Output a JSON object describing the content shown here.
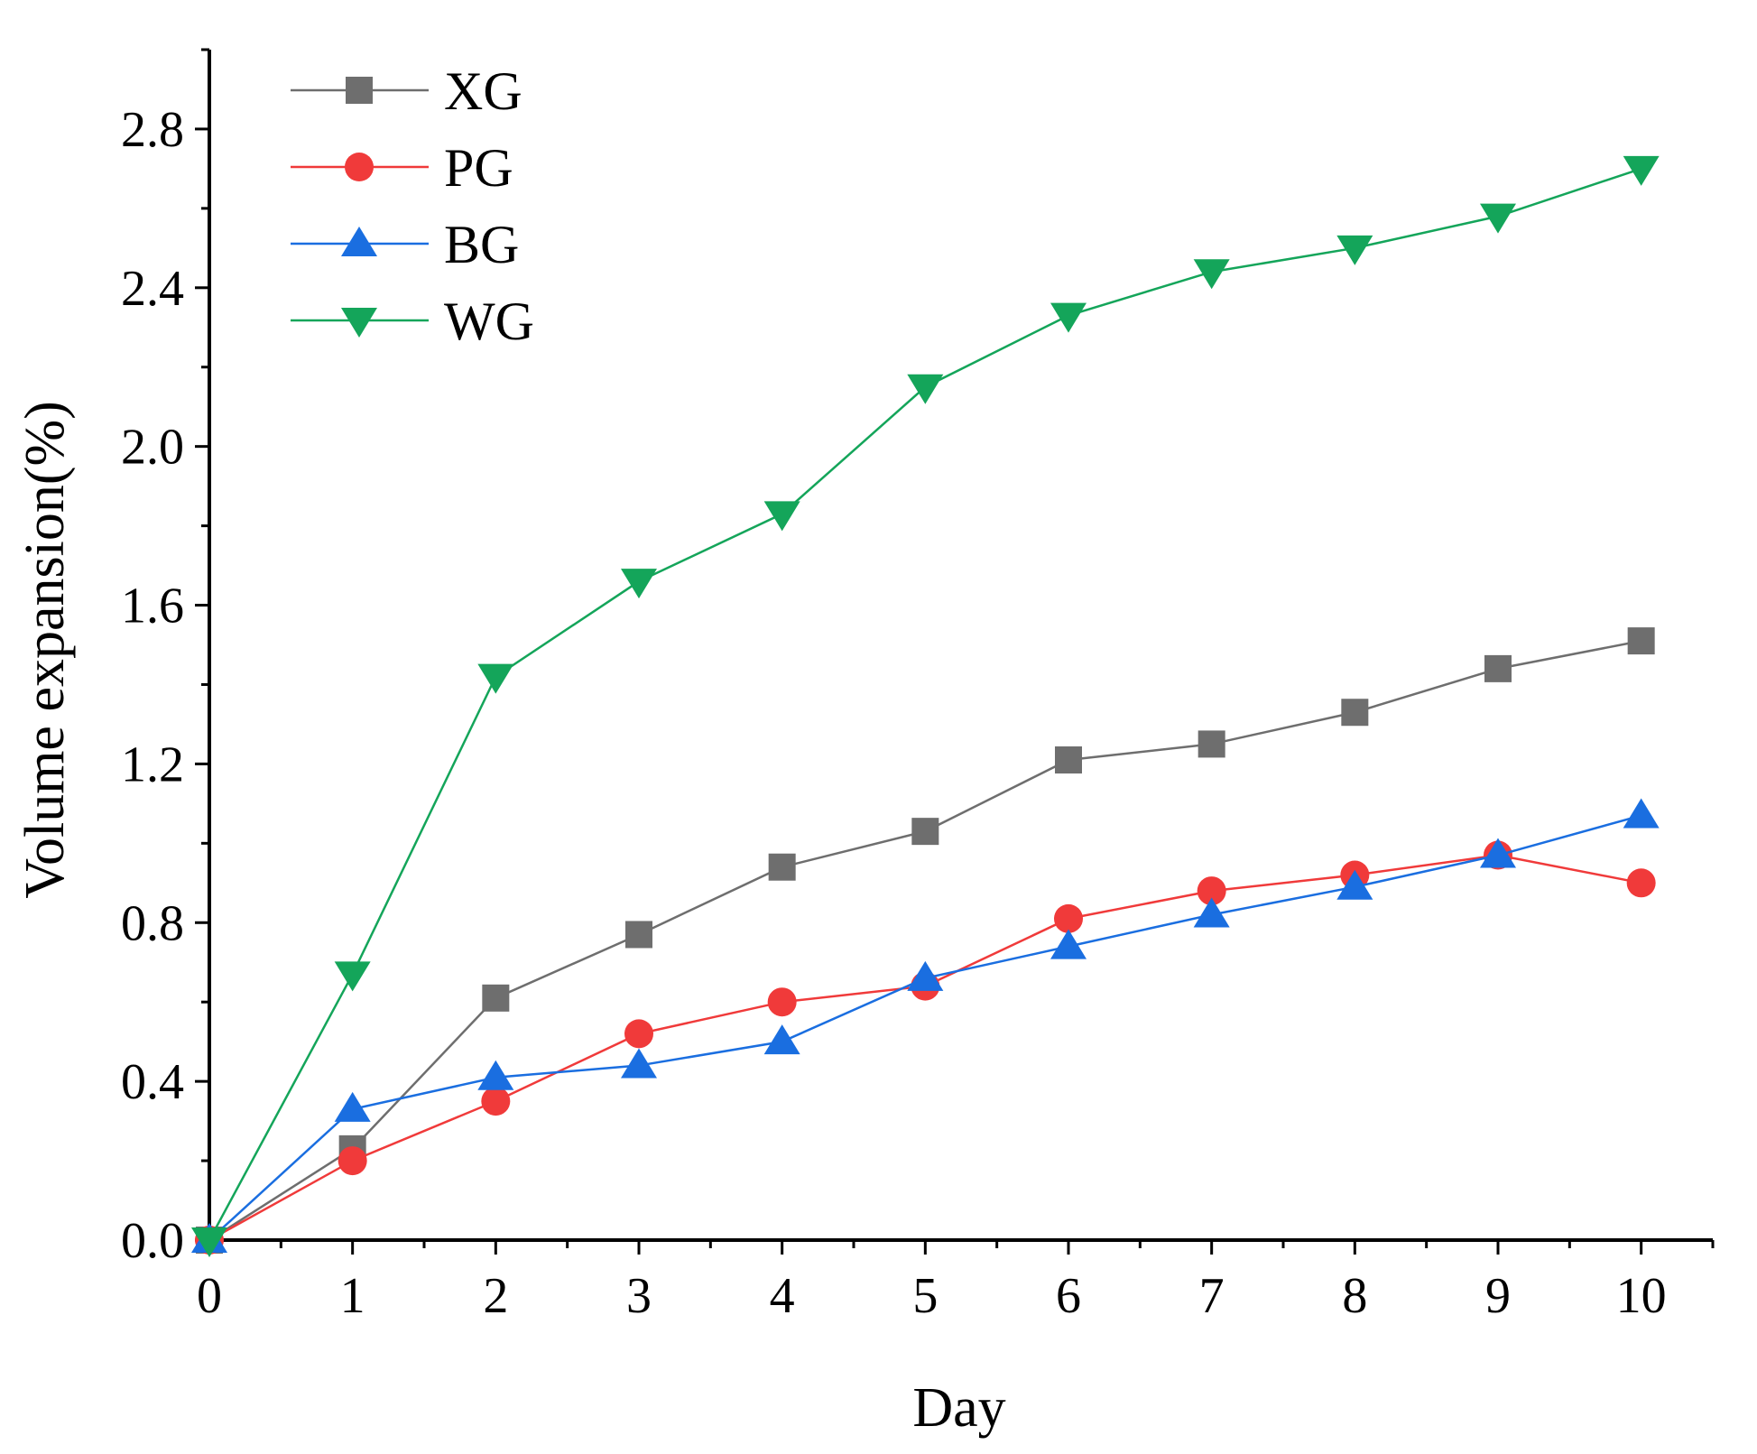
{
  "chart_data": {
    "type": "line",
    "title": "",
    "xlabel": "Day",
    "ylabel": "Volume expansion(%)",
    "xlim": [
      0,
      10.5
    ],
    "ylim": [
      0,
      3.0
    ],
    "grid": false,
    "legend_position": "top-left",
    "x": [
      0,
      1,
      2,
      3,
      4,
      5,
      6,
      7,
      8,
      9,
      10
    ],
    "x_tick_labels": [
      "0",
      "1",
      "2",
      "3",
      "4",
      "5",
      "6",
      "7",
      "8",
      "9",
      "10"
    ],
    "y_ticks": [
      0.0,
      0.4,
      0.8,
      1.2,
      1.6,
      2.0,
      2.4,
      2.8
    ],
    "y_tick_labels": [
      "0.0",
      "0.4",
      "0.8",
      "1.2",
      "1.6",
      "2.0",
      "2.4",
      "2.8"
    ],
    "series": [
      {
        "name": "XG",
        "color": "#6e6e6e",
        "marker": "square",
        "values": [
          0.0,
          0.23,
          0.61,
          0.77,
          0.94,
          1.03,
          1.21,
          1.25,
          1.33,
          1.44,
          1.51
        ]
      },
      {
        "name": "PG",
        "color": "#f03a3a",
        "marker": "circle",
        "values": [
          0.0,
          0.2,
          0.35,
          0.52,
          0.6,
          0.64,
          0.81,
          0.88,
          0.92,
          0.97,
          0.9
        ]
      },
      {
        "name": "BG",
        "color": "#1a6ee0",
        "marker": "triangle-up",
        "values": [
          0.0,
          0.33,
          0.41,
          0.44,
          0.5,
          0.66,
          0.74,
          0.82,
          0.89,
          0.97,
          1.07
        ]
      },
      {
        "name": "WG",
        "color": "#14a55a",
        "marker": "triangle-down",
        "values": [
          0.0,
          0.67,
          1.42,
          1.66,
          1.83,
          2.15,
          2.33,
          2.44,
          2.5,
          2.58,
          2.7
        ]
      }
    ]
  }
}
